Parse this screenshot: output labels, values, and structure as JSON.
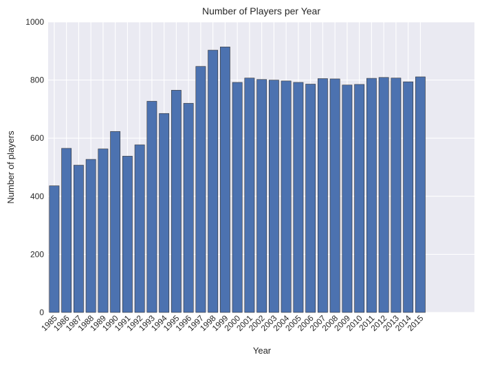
{
  "chart_data": {
    "type": "bar",
    "title": "Number of Players per Year",
    "xlabel": "Year",
    "ylabel": "Number of players",
    "ylim": [
      0,
      1000
    ],
    "yticks": [
      0,
      200,
      400,
      600,
      800,
      1000
    ],
    "grid": true,
    "colors": {
      "bar": "#4c72b0",
      "background": "#eaeaf2",
      "grid": "#ffffff"
    },
    "categories": [
      "1985",
      "1986",
      "1987",
      "1988",
      "1989",
      "1990",
      "1991",
      "1992",
      "1993",
      "1994",
      "1995",
      "1996",
      "1997",
      "1998",
      "1999",
      "2000",
      "2001",
      "2002",
      "2003",
      "2004",
      "2005",
      "2006",
      "2007",
      "2008",
      "2009",
      "2010",
      "2011",
      "2012",
      "2013",
      "2014",
      "2015"
    ],
    "values": [
      436,
      565,
      507,
      527,
      563,
      623,
      538,
      577,
      727,
      685,
      765,
      720,
      847,
      903,
      914,
      792,
      807,
      802,
      800,
      797,
      792,
      786,
      805,
      804,
      783,
      785,
      806,
      809,
      807,
      794,
      811
    ]
  }
}
